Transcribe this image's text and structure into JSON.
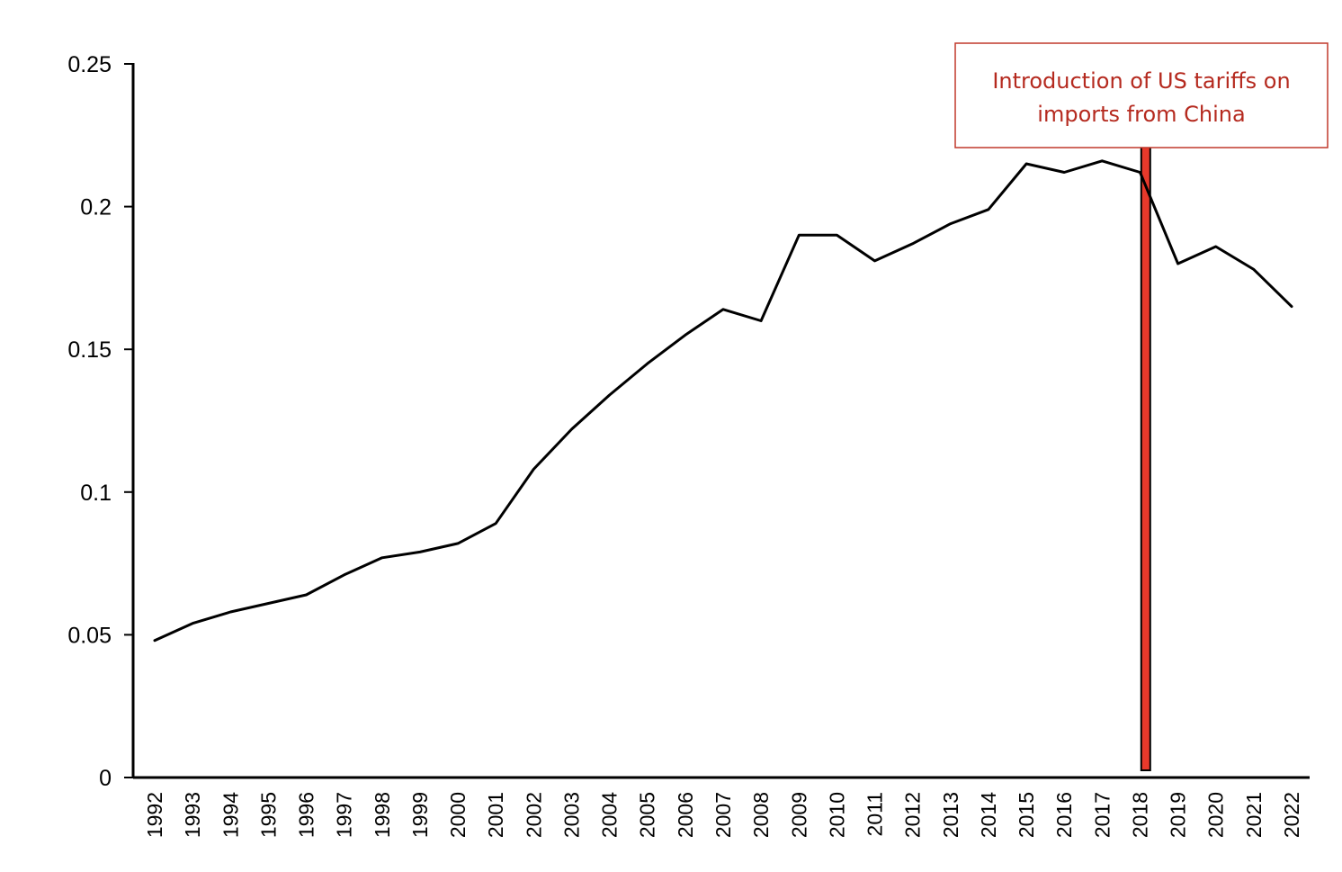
{
  "chart_data": {
    "type": "line",
    "title": "",
    "xlabel": "",
    "ylabel": "",
    "ylim": [
      0,
      0.25
    ],
    "yticks": [
      "0",
      "0.05",
      "0.1",
      "0.15",
      "0.2",
      "0.25"
    ],
    "grid": false,
    "x": [
      1992,
      1993,
      1994,
      1995,
      1996,
      1997,
      1998,
      1999,
      2000,
      2001,
      2002,
      2003,
      2004,
      2005,
      2006,
      2007,
      2008,
      2009,
      2010,
      2011,
      2012,
      2013,
      2014,
      2015,
      2016,
      2017,
      2018,
      2019,
      2020,
      2021,
      2022
    ],
    "series": [
      {
        "values": [
          0.048,
          0.054,
          0.058,
          0.061,
          0.064,
          0.071,
          0.077,
          0.079,
          0.082,
          0.089,
          0.108,
          0.122,
          0.134,
          0.145,
          0.155,
          0.164,
          0.16,
          0.19,
          0.19,
          0.181,
          0.187,
          0.194,
          0.199,
          0.215,
          0.212,
          0.216,
          0.212,
          0.18,
          0.186,
          0.178,
          0.165
        ],
        "color": "#000000"
      }
    ],
    "annotation": {
      "text_line1": "Introduction of US tariffs on",
      "text_line2": "imports from China",
      "x": 2018.15,
      "color": "#b52a1f",
      "bar_fill": "#e8392b",
      "bar_stroke": "#000000"
    }
  }
}
